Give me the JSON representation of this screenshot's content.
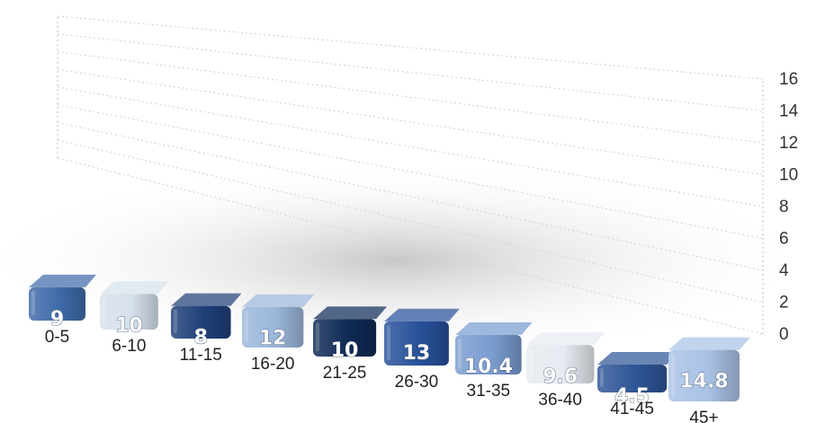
{
  "chart_data": {
    "type": "bar",
    "categories": [
      "0-5",
      "6-10",
      "11-15",
      "16-20",
      "21-25",
      "26-30",
      "31-35",
      "36-40",
      "41-45",
      "45+"
    ],
    "values": [
      9,
      10,
      8,
      12,
      10,
      13,
      10.4,
      9.6,
      4.5,
      14.8
    ],
    "value_labels": [
      "9",
      "10",
      "8",
      "12",
      "10",
      "13",
      "10.4",
      "9.6",
      "4.5",
      "14.8"
    ],
    "y_ticks": [
      "0",
      "2",
      "4",
      "6",
      "8",
      "10",
      "12",
      "14",
      "16"
    ],
    "ylim": [
      0,
      16
    ],
    "grid": true,
    "title": "",
    "xlabel": "",
    "ylabel": "",
    "colors": [
      "#3f6aa8",
      "#d6e0ec",
      "#1f3f78",
      "#9ab6da",
      "#0f2a55",
      "#27509a",
      "#7a9cd0",
      "#e6ebf1",
      "#2e5596",
      "#a9c2e6"
    ]
  }
}
